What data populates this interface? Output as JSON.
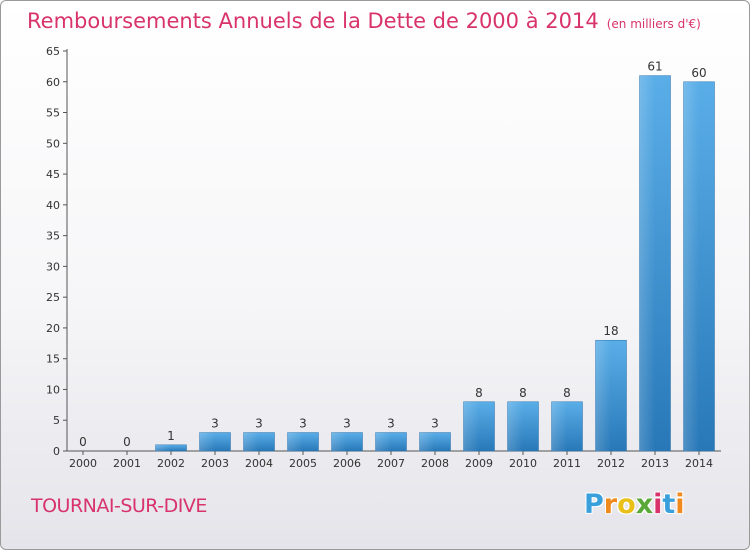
{
  "header": {
    "title": "Remboursements Annuels de la Dette de 2000 à 2014",
    "unit": "(en milliers d'€)"
  },
  "footer": {
    "commune": "TOURNAI-SUR-DIVE",
    "logo_letters": [
      "P",
      "r",
      "o",
      "x",
      "i",
      "t",
      "i"
    ],
    "logo_colors": [
      "#3aa0dc",
      "#f08a1c",
      "#e8c018",
      "#5aa838",
      "#d8336a",
      "#3aa0dc",
      "#f08a1c"
    ]
  },
  "chart_data": {
    "type": "bar",
    "title": "Remboursements Annuels de la Dette de 2000 à 2014",
    "categories": [
      "2000",
      "2001",
      "2002",
      "2003",
      "2004",
      "2005",
      "2006",
      "2007",
      "2008",
      "2009",
      "2010",
      "2011",
      "2012",
      "2013",
      "2014"
    ],
    "values": [
      0,
      0,
      1,
      3,
      3,
      3,
      3,
      3,
      3,
      8,
      8,
      8,
      18,
      61,
      60
    ],
    "ylim": [
      0,
      65
    ],
    "yticks": [
      0,
      5,
      10,
      15,
      20,
      25,
      30,
      35,
      40,
      45,
      50,
      55,
      60,
      65
    ],
    "grid": false,
    "colors": {
      "bar_light": "#5aaee8",
      "bar_dark": "#2878b8",
      "text": "#d8336a"
    }
  }
}
